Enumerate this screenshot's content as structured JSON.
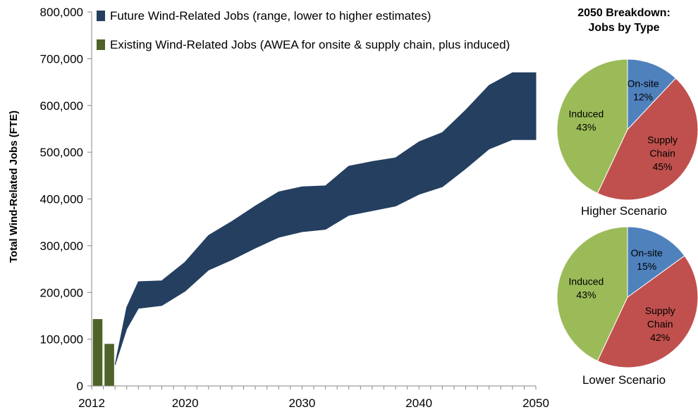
{
  "chart_data": [
    {
      "type": "area",
      "ylabel": "Total Wind-Related Jobs (FTE)",
      "xlabel": "",
      "ylim": [
        0,
        800000
      ],
      "xlim": [
        2012,
        2050
      ],
      "y_ticks": [
        "0",
        "100,000",
        "200,000",
        "300,000",
        "400,000",
        "500,000",
        "600,000",
        "700,000",
        "800,000"
      ],
      "x_ticks": [
        "2012",
        "2020",
        "2030",
        "2040",
        "2050"
      ],
      "x_tick_values": [
        2012,
        2020,
        2030,
        2040,
        2050
      ],
      "legend_position": "top",
      "grid": false,
      "series": [
        {
          "name": "Future Wind-Related Jobs (range, lower to higher estimates)",
          "kind": "range-area",
          "color": "#243f60",
          "x": [
            2014,
            2015,
            2016,
            2018,
            2020,
            2022,
            2024,
            2026,
            2028,
            2030,
            2032,
            2034,
            2036,
            2038,
            2040,
            2042,
            2044,
            2046,
            2048,
            2050
          ],
          "lower": [
            45000,
            122000,
            166000,
            172000,
            203000,
            248000,
            270000,
            295000,
            318000,
            330000,
            335000,
            365000,
            375000,
            385000,
            410000,
            426000,
            465000,
            507000,
            527000,
            527000
          ],
          "upper": [
            45000,
            168000,
            223000,
            225000,
            265000,
            322000,
            352000,
            385000,
            415000,
            426000,
            428000,
            470000,
            480000,
            488000,
            522000,
            542000,
            590000,
            643000,
            670000,
            670000
          ]
        },
        {
          "name": "Existing Wind-Related Jobs (AWEA for onsite & supply chain, plus induced)",
          "kind": "bar",
          "color": "#4f6228",
          "x": [
            2012,
            2013
          ],
          "values": [
            143000,
            90000
          ]
        }
      ]
    },
    {
      "type": "pie",
      "caption": "Higher Scenario",
      "slices": [
        {
          "label": "On-site",
          "value": 12,
          "display": "12%",
          "color": "#4f81bd"
        },
        {
          "label": "Supply Chain",
          "line1": "Supply",
          "line2": "Chain",
          "value": 45,
          "display": "45%",
          "color": "#c0504d"
        },
        {
          "label": "Induced",
          "value": 43,
          "display": "43%",
          "color": "#9bbb59"
        }
      ]
    },
    {
      "type": "pie",
      "caption": "Lower Scenario",
      "slices": [
        {
          "label": "On-site",
          "value": 15,
          "display": "15%",
          "color": "#4f81bd"
        },
        {
          "label": "Supply Chain",
          "line1": "Supply",
          "line2": "Chain",
          "value": 42,
          "display": "42%",
          "color": "#c0504d"
        },
        {
          "label": "Induced",
          "value": 43,
          "display": "43%",
          "color": "#9bbb59"
        }
      ]
    }
  ],
  "pie_title": {
    "line1": "2050 Breakdown:",
    "line2": "Jobs by Type"
  }
}
